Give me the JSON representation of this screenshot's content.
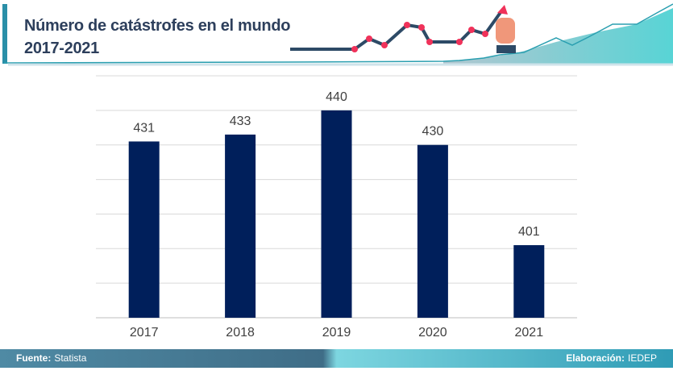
{
  "header": {
    "title_line1": "Número de catástrofes en el mundo",
    "title_line2": "2017-2021"
  },
  "footer": {
    "source_label": "Fuente:",
    "source_value": "Statista",
    "credit_label": "Elaboración:",
    "credit_value": "IEDEP"
  },
  "colors": {
    "bar": "#001f5b",
    "grid": "#d9d9d9",
    "accent": "#2a8fa8",
    "title": "#2d3f5c"
  },
  "chart_data": {
    "type": "bar",
    "title": "Número de catástrofes en el mundo 2017-2021",
    "categories": [
      "2017",
      "2018",
      "2019",
      "2020",
      "2021"
    ],
    "values": [
      431,
      433,
      440,
      430,
      401
    ],
    "xlabel": "",
    "ylabel": "",
    "ylim": [
      380,
      450
    ],
    "grid": true,
    "gridlines": [
      380,
      390,
      400,
      410,
      420,
      430,
      440,
      450
    ]
  }
}
